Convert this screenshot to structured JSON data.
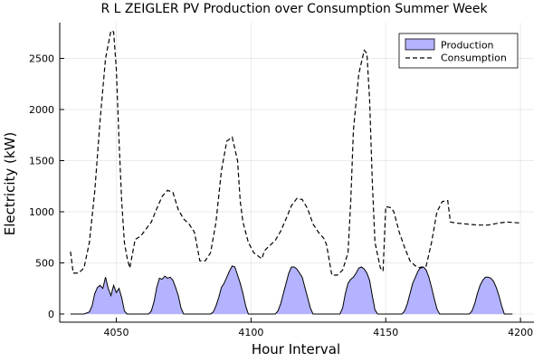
{
  "chart_data": {
    "type": "area",
    "title": "R L ZEIGLER PV Production over Consumption Summer Week",
    "xlabel": "Hour Interval",
    "ylabel": "Electricity (kW)",
    "xlim": [
      4029,
      4205
    ],
    "ylim": [
      -80,
      2850
    ],
    "xticks": [
      4050,
      4100,
      4150,
      4200
    ],
    "yticks": [
      0,
      500,
      1000,
      1500,
      2000,
      2500
    ],
    "grid": true,
    "legend_position": "top-right",
    "series": [
      {
        "name": "Production",
        "style": "filled",
        "color": "#b3b3ff",
        "points": [
          [
            4033,
            0
          ],
          [
            4038,
            0
          ],
          [
            4040,
            20
          ],
          [
            4041,
            80
          ],
          [
            4042,
            200
          ],
          [
            4043,
            260
          ],
          [
            4044,
            280
          ],
          [
            4045,
            250
          ],
          [
            4046,
            360
          ],
          [
            4047,
            250
          ],
          [
            4048,
            180
          ],
          [
            4049,
            280
          ],
          [
            4050,
            210
          ],
          [
            4051,
            250
          ],
          [
            4052,
            160
          ],
          [
            4053,
            30
          ],
          [
            4054,
            0
          ],
          [
            4060,
            0
          ],
          [
            4062,
            0
          ],
          [
            4063,
            30
          ],
          [
            4064,
            120
          ],
          [
            4065,
            260
          ],
          [
            4066,
            350
          ],
          [
            4067,
            340
          ],
          [
            4068,
            370
          ],
          [
            4069,
            350
          ],
          [
            4070,
            360
          ],
          [
            4071,
            330
          ],
          [
            4072,
            260
          ],
          [
            4073,
            180
          ],
          [
            4074,
            60
          ],
          [
            4075,
            0
          ],
          [
            4081,
            0
          ],
          [
            4085,
            0
          ],
          [
            4086,
            20
          ],
          [
            4087,
            80
          ],
          [
            4088,
            160
          ],
          [
            4089,
            260
          ],
          [
            4090,
            300
          ],
          [
            4091,
            360
          ],
          [
            4092,
            420
          ],
          [
            4093,
            470
          ],
          [
            4094,
            460
          ],
          [
            4095,
            380
          ],
          [
            4096,
            300
          ],
          [
            4097,
            200
          ],
          [
            4098,
            80
          ],
          [
            4099,
            0
          ],
          [
            4105,
            0
          ],
          [
            4109,
            0
          ],
          [
            4110,
            30
          ],
          [
            4111,
            100
          ],
          [
            4112,
            200
          ],
          [
            4113,
            300
          ],
          [
            4114,
            400
          ],
          [
            4115,
            460
          ],
          [
            4116,
            460
          ],
          [
            4117,
            440
          ],
          [
            4118,
            400
          ],
          [
            4119,
            360
          ],
          [
            4120,
            260
          ],
          [
            4121,
            160
          ],
          [
            4122,
            60
          ],
          [
            4123,
            0
          ],
          [
            4128,
            0
          ],
          [
            4133,
            0
          ],
          [
            4134,
            60
          ],
          [
            4135,
            200
          ],
          [
            4136,
            300
          ],
          [
            4137,
            340
          ],
          [
            4138,
            360
          ],
          [
            4139,
            400
          ],
          [
            4140,
            450
          ],
          [
            4141,
            460
          ],
          [
            4142,
            440
          ],
          [
            4143,
            400
          ],
          [
            4144,
            330
          ],
          [
            4145,
            180
          ],
          [
            4146,
            40
          ],
          [
            4147,
            0
          ],
          [
            4152,
            0
          ],
          [
            4156,
            0
          ],
          [
            4157,
            30
          ],
          [
            4158,
            100
          ],
          [
            4159,
            200
          ],
          [
            4160,
            300
          ],
          [
            4161,
            360
          ],
          [
            4162,
            420
          ],
          [
            4163,
            460
          ],
          [
            4164,
            460
          ],
          [
            4165,
            430
          ],
          [
            4166,
            360
          ],
          [
            4167,
            260
          ],
          [
            4168,
            150
          ],
          [
            4169,
            50
          ],
          [
            4170,
            0
          ],
          [
            4177,
            0
          ],
          [
            4181,
            0
          ],
          [
            4182,
            30
          ],
          [
            4183,
            100
          ],
          [
            4184,
            200
          ],
          [
            4185,
            280
          ],
          [
            4186,
            330
          ],
          [
            4187,
            360
          ],
          [
            4188,
            360
          ],
          [
            4189,
            350
          ],
          [
            4190,
            320
          ],
          [
            4191,
            260
          ],
          [
            4192,
            180
          ],
          [
            4193,
            80
          ],
          [
            4194,
            0
          ],
          [
            4197,
            0
          ]
        ]
      },
      {
        "name": "Consumption",
        "style": "dashed",
        "color": "#000000",
        "points": [
          [
            4033,
            610
          ],
          [
            4034,
            400
          ],
          [
            4036,
            400
          ],
          [
            4038,
            450
          ],
          [
            4040,
            700
          ],
          [
            4042,
            1200
          ],
          [
            4044,
            1900
          ],
          [
            4046,
            2500
          ],
          [
            4048,
            2770
          ],
          [
            4049,
            2760
          ],
          [
            4050,
            2400
          ],
          [
            4051,
            1700
          ],
          [
            4052,
            1100
          ],
          [
            4053,
            700
          ],
          [
            4054,
            550
          ],
          [
            4055,
            450
          ],
          [
            4057,
            730
          ],
          [
            4059,
            760
          ],
          [
            4061,
            830
          ],
          [
            4063,
            900
          ],
          [
            4065,
            1030
          ],
          [
            4067,
            1150
          ],
          [
            4069,
            1210
          ],
          [
            4071,
            1190
          ],
          [
            4073,
            1020
          ],
          [
            4075,
            930
          ],
          [
            4077,
            880
          ],
          [
            4079,
            800
          ],
          [
            4081,
            520
          ],
          [
            4083,
            520
          ],
          [
            4085,
            600
          ],
          [
            4087,
            900
          ],
          [
            4089,
            1400
          ],
          [
            4091,
            1690
          ],
          [
            4093,
            1730
          ],
          [
            4095,
            1500
          ],
          [
            4096,
            1100
          ],
          [
            4097,
            900
          ],
          [
            4099,
            700
          ],
          [
            4101,
            600
          ],
          [
            4104,
            540
          ],
          [
            4105,
            620
          ],
          [
            4107,
            670
          ],
          [
            4109,
            720
          ],
          [
            4111,
            810
          ],
          [
            4113,
            930
          ],
          [
            4115,
            1060
          ],
          [
            4117,
            1130
          ],
          [
            4119,
            1120
          ],
          [
            4121,
            1030
          ],
          [
            4123,
            880
          ],
          [
            4125,
            800
          ],
          [
            4127,
            740
          ],
          [
            4128,
            680
          ],
          [
            4130,
            380
          ],
          [
            4132,
            380
          ],
          [
            4134,
            430
          ],
          [
            4136,
            600
          ],
          [
            4137,
            1100
          ],
          [
            4138,
            1800
          ],
          [
            4140,
            2350
          ],
          [
            4142,
            2580
          ],
          [
            4143,
            2550
          ],
          [
            4144,
            2100
          ],
          [
            4145,
            1300
          ],
          [
            4146,
            700
          ],
          [
            4148,
            450
          ],
          [
            4149,
            420
          ],
          [
            4150,
            1050
          ],
          [
            4152,
            1040
          ],
          [
            4153,
            1000
          ],
          [
            4155,
            800
          ],
          [
            4157,
            650
          ],
          [
            4159,
            520
          ],
          [
            4161,
            470
          ],
          [
            4163,
            450
          ],
          [
            4165,
            470
          ],
          [
            4167,
            700
          ],
          [
            4169,
            1000
          ],
          [
            4171,
            1100
          ],
          [
            4173,
            1110
          ],
          [
            4174,
            900
          ],
          [
            4176,
            890
          ],
          [
            4180,
            880
          ],
          [
            4184,
            870
          ],
          [
            4188,
            870
          ],
          [
            4192,
            890
          ],
          [
            4195,
            900
          ],
          [
            4200,
            890
          ]
        ]
      }
    ]
  }
}
